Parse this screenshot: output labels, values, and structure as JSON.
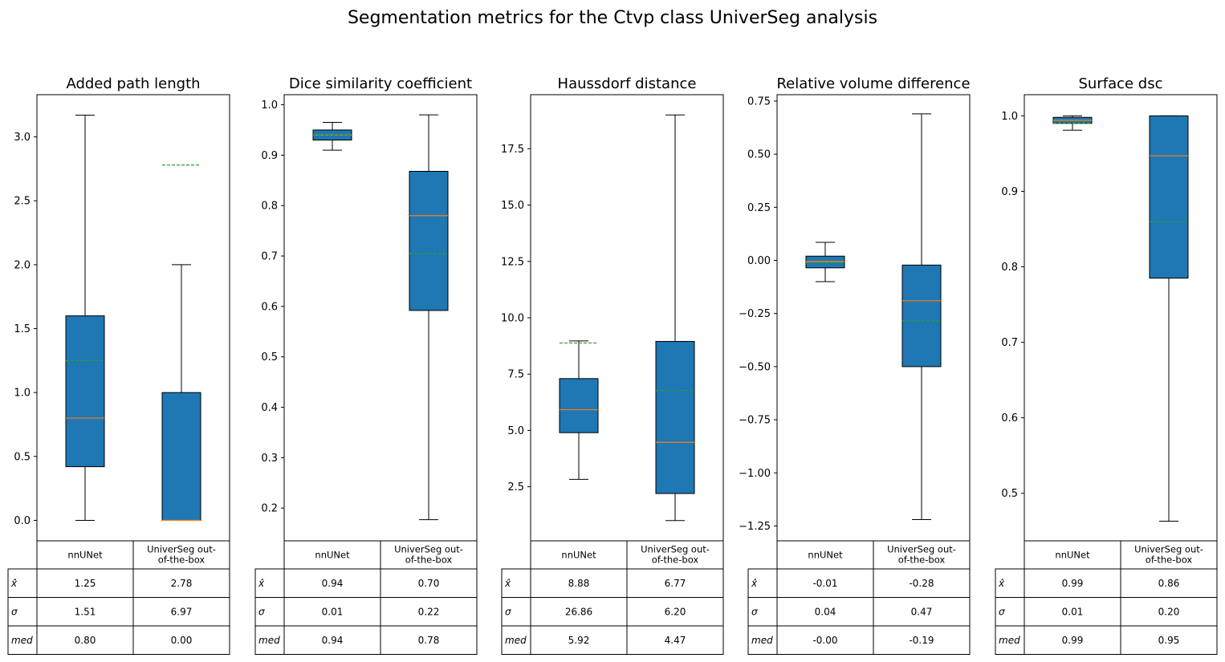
{
  "title": "Segmentation metrics for the Ctvp class UniverSeg analysis",
  "style": {
    "box_fill": "#1f77b4",
    "median_color": "#ff7f0e",
    "mean_color": "#2ca02c",
    "line_color": "#000000"
  },
  "row_labels": [
    "x̂",
    "σ",
    "med"
  ],
  "chart_data": [
    {
      "type": "box",
      "title": "Added path length",
      "categories": [
        "nnUNet",
        "UniverSeg out-of-the-box"
      ],
      "col_labels": [
        [
          "nnUNet"
        ],
        [
          "UniverSeg out-",
          "of-the-box"
        ]
      ],
      "ylim": [
        -0.16,
        3.33
      ],
      "yticks": [
        0.0,
        0.5,
        1.0,
        1.5,
        2.0,
        2.5,
        3.0
      ],
      "ytick_labels": [
        "0.0",
        "0.5",
        "1.0",
        "1.5",
        "2.0",
        "2.5",
        "3.0"
      ],
      "boxes": [
        {
          "whisker_low": 0.0,
          "q1": 0.42,
          "median": 0.8,
          "q3": 1.6,
          "whisker_high": 3.17,
          "mean": 1.25
        },
        {
          "whisker_low": 0.0,
          "q1": 0.0,
          "median": 0.0,
          "q3": 1.0,
          "whisker_high": 2.0,
          "mean": 2.78
        }
      ],
      "table": [
        [
          "1.25",
          "2.78"
        ],
        [
          "1.51",
          "6.97"
        ],
        [
          "0.80",
          "0.00"
        ]
      ]
    },
    {
      "type": "box",
      "title": "Dice similarity coefficient",
      "categories": [
        "nnUNet",
        "UniverSeg out-of-the-box"
      ],
      "col_labels": [
        [
          "nnUNet"
        ],
        [
          "UniverSeg out-",
          "of-the-box"
        ]
      ],
      "ylim": [
        0.135,
        1.02
      ],
      "yticks": [
        0.2,
        0.3,
        0.4,
        0.5,
        0.6,
        0.7,
        0.8,
        0.9,
        1.0
      ],
      "ytick_labels": [
        "0.2",
        "0.3",
        "0.4",
        "0.5",
        "0.6",
        "0.7",
        "0.8",
        "0.9",
        "1.0"
      ],
      "boxes": [
        {
          "whisker_low": 0.91,
          "q1": 0.93,
          "median": 0.94,
          "q3": 0.95,
          "whisker_high": 0.965,
          "mean": 0.94
        },
        {
          "whisker_low": 0.177,
          "q1": 0.592,
          "median": 0.78,
          "q3": 0.868,
          "whisker_high": 0.98,
          "mean": 0.705
        }
      ],
      "table": [
        [
          "0.94",
          "0.70"
        ],
        [
          "0.01",
          "0.22"
        ],
        [
          "0.94",
          "0.78"
        ]
      ]
    },
    {
      "type": "box",
      "title": "Haussdorf distance",
      "categories": [
        "nnUNet",
        "UniverSeg out-of-the-box"
      ],
      "col_labels": [
        [
          "nnUNet"
        ],
        [
          "UniverSeg out-",
          "of-the-box"
        ]
      ],
      "ylim": [
        0.1,
        19.9
      ],
      "yticks": [
        2.5,
        5.0,
        7.5,
        10.0,
        12.5,
        15.0,
        17.5
      ],
      "ytick_labels": [
        "2.5",
        "5.0",
        "7.5",
        "10.0",
        "12.5",
        "15.0",
        "17.5"
      ],
      "boxes": [
        {
          "whisker_low": 2.83,
          "q1": 4.9,
          "median": 5.92,
          "q3": 7.3,
          "whisker_high": 8.97,
          "mean": 8.88
        },
        {
          "whisker_low": 1.0,
          "q1": 2.2,
          "median": 4.47,
          "q3": 8.95,
          "whisker_high": 19.0,
          "mean": 6.77
        }
      ],
      "table": [
        [
          "8.88",
          "6.77"
        ],
        [
          "26.86",
          "6.20"
        ],
        [
          "5.92",
          "4.47"
        ]
      ]
    },
    {
      "type": "box",
      "title": "Relative volume difference",
      "categories": [
        "nnUNet",
        "UniverSeg out-of-the-box"
      ],
      "col_labels": [
        [
          "nnUNet"
        ],
        [
          "UniverSeg out-",
          "of-the-box"
        ]
      ],
      "ylim": [
        -1.32,
        0.78
      ],
      "yticks": [
        -1.25,
        -1.0,
        -0.75,
        -0.5,
        -0.25,
        0.0,
        0.25,
        0.5,
        0.75
      ],
      "ytick_labels": [
        "−1.25",
        "−1.00",
        "−0.75",
        "−0.50",
        "−0.25",
        "0.00",
        "0.25",
        "0.50",
        "0.75"
      ],
      "boxes": [
        {
          "whisker_low": -0.1,
          "q1": -0.035,
          "median": -0.005,
          "q3": 0.02,
          "whisker_high": 0.085,
          "mean": -0.01
        },
        {
          "whisker_low": -1.22,
          "q1": -0.5,
          "median": -0.19,
          "q3": -0.022,
          "whisker_high": 0.69,
          "mean": -0.285
        }
      ],
      "table": [
        [
          "-0.01",
          "-0.28"
        ],
        [
          "0.04",
          "0.47"
        ],
        [
          "-0.00",
          "-0.19"
        ]
      ]
    },
    {
      "type": "box",
      "title": "Surface dsc",
      "categories": [
        "nnUNet",
        "UniverSeg out-of-the-box"
      ],
      "col_labels": [
        [
          "nnUNet"
        ],
        [
          "UniverSeg out-",
          "of-the-box"
        ]
      ],
      "ylim": [
        0.437,
        1.028
      ],
      "yticks": [
        0.5,
        0.6,
        0.7,
        0.8,
        0.9,
        1.0
      ],
      "ytick_labels": [
        "0.5",
        "0.6",
        "0.7",
        "0.8",
        "0.9",
        "1.0"
      ],
      "boxes": [
        {
          "whisker_low": 0.981,
          "q1": 0.99,
          "median": 0.994,
          "q3": 0.998,
          "whisker_high": 1.0,
          "mean": 0.99
        },
        {
          "whisker_low": 0.463,
          "q1": 0.785,
          "median": 0.947,
          "q3": 1.0,
          "whisker_high": 1.0,
          "mean": 0.86
        }
      ],
      "table": [
        [
          "0.99",
          "0.86"
        ],
        [
          "0.01",
          "0.20"
        ],
        [
          "0.99",
          "0.95"
        ]
      ]
    }
  ]
}
